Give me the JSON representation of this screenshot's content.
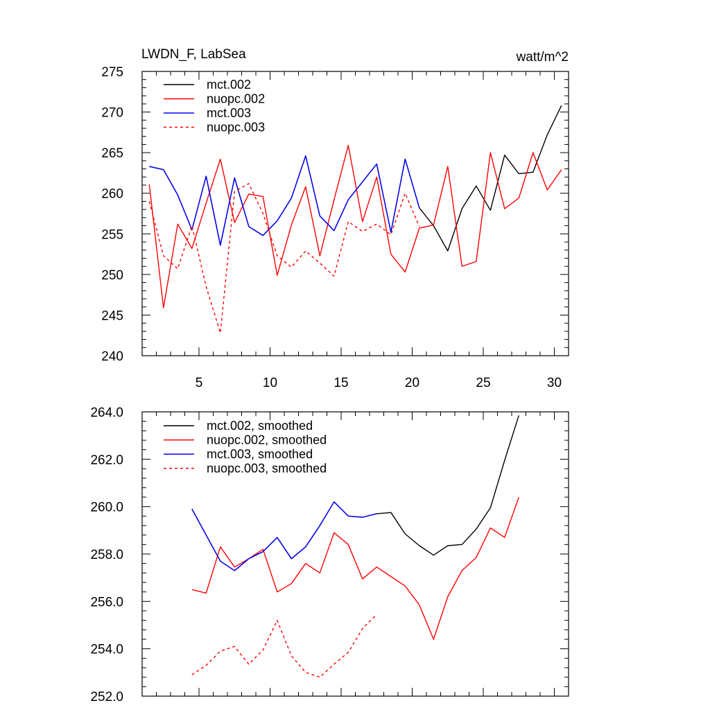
{
  "colors": {
    "black": "#000000",
    "red": "#ff0000",
    "blue": "#0000ff"
  },
  "chart_data": [
    {
      "type": "line",
      "title_left": "LWDN_F, LabSea",
      "title_right": "watt/m^2",
      "xlim": [
        1,
        31
      ],
      "ylim": [
        240,
        275
      ],
      "xticks": [
        5,
        10,
        15,
        20,
        25,
        30
      ],
      "xtick_labels": [
        "5",
        "10",
        "15",
        "20",
        "25",
        "30"
      ],
      "yticks": [
        240,
        245,
        250,
        255,
        260,
        265,
        270,
        275
      ],
      "ytick_labels": [
        "240",
        "245",
        "250",
        "255",
        "260",
        "265",
        "270",
        "275"
      ],
      "series": [
        {
          "name": "mct.002",
          "color": "#000000",
          "dash": false,
          "x": [
            1.5,
            2.5,
            3.5,
            4.5,
            5.5,
            6.5,
            7.5,
            8.5,
            9.5,
            10.5,
            11.5,
            12.5,
            13.5,
            14.5,
            15.5,
            16.5,
            17.5,
            18.5,
            19.5,
            20.5,
            21.5,
            22.5,
            23.5,
            24.5,
            25.5,
            26.5,
            27.5,
            28.5,
            29.5,
            30.5
          ],
          "values": [
            263.3,
            262.9,
            259.8,
            255.5,
            262.1,
            253.6,
            261.9,
            255.9,
            254.8,
            256.6,
            259.4,
            264.6,
            257.2,
            255.4,
            259.2,
            261.4,
            263.6,
            255.2,
            264.2,
            258.2,
            256.0,
            252.9,
            258.1,
            260.9,
            257.9,
            264.7,
            262.4,
            262.6,
            267.2,
            270.8
          ]
        },
        {
          "name": "nuopc.002",
          "color": "#ff0000",
          "dash": false,
          "x": [
            1.5,
            2.5,
            3.5,
            4.5,
            5.5,
            6.5,
            7.5,
            8.5,
            9.5,
            10.5,
            11.5,
            12.5,
            13.5,
            14.5,
            15.5,
            16.5,
            17.5,
            18.5,
            19.5,
            20.5,
            21.5,
            22.5,
            23.5,
            24.5,
            25.5,
            26.5,
            27.5,
            28.5,
            29.5,
            30.5
          ],
          "values": [
            261.1,
            245.9,
            256.2,
            253.2,
            258.8,
            264.2,
            256.4,
            259.9,
            259.6,
            249.9,
            256.1,
            260.8,
            252.3,
            259.2,
            265.9,
            256.5,
            262.0,
            252.5,
            250.3,
            255.7,
            256.1,
            263.3,
            251.0,
            251.6,
            265.0,
            258.1,
            259.4,
            265.0,
            260.4,
            262.9
          ]
        },
        {
          "name": "mct.003",
          "color": "#0000ff",
          "dash": false,
          "x": [
            1.5,
            2.5,
            3.5,
            4.5,
            5.5,
            6.5,
            7.5,
            8.5,
            9.5,
            10.5,
            11.5,
            12.5,
            13.5,
            14.5,
            15.5,
            16.5,
            17.5,
            18.5,
            19.5,
            20.5
          ],
          "values": [
            263.3,
            262.9,
            259.8,
            255.5,
            262.1,
            253.6,
            261.9,
            255.9,
            254.8,
            256.6,
            259.4,
            264.6,
            257.2,
            255.4,
            259.2,
            261.4,
            263.6,
            255.2,
            264.2,
            258.2
          ]
        },
        {
          "name": "nuopc.003",
          "color": "#ff0000",
          "dash": true,
          "x": [
            1.5,
            2.5,
            3.5,
            4.5,
            5.5,
            6.5,
            7.5,
            8.5,
            9.5,
            10.5,
            11.5,
            12.5,
            13.5,
            14.5,
            15.5,
            16.5,
            17.5,
            18.5,
            19.5,
            20.5
          ],
          "values": [
            259.0,
            252.3,
            250.7,
            256.0,
            248.5,
            242.8,
            260.2,
            261.2,
            257.5,
            252.3,
            250.9,
            252.9,
            251.4,
            249.8,
            256.5,
            255.3,
            256.2,
            254.9,
            260.0,
            255.9
          ]
        }
      ]
    },
    {
      "type": "line",
      "xlim": [
        1,
        31
      ],
      "ylim": [
        252,
        264
      ],
      "xticks": [
        5,
        10,
        15,
        20,
        25,
        30
      ],
      "yticks": [
        252,
        254,
        256,
        258,
        260,
        262,
        264
      ],
      "ytick_labels": [
        "252.0",
        "254.0",
        "256.0",
        "258.0",
        "260.0",
        "262.0",
        "264.0"
      ],
      "series": [
        {
          "name": "mct.002, smoothed",
          "color": "#000000",
          "dash": false,
          "x": [
            4.5,
            5.5,
            6.5,
            7.5,
            8.5,
            9.5,
            10.5,
            11.5,
            12.5,
            13.5,
            14.5,
            15.5,
            16.5,
            17.5,
            18.5,
            19.5,
            20.5,
            21.5,
            22.5,
            23.5,
            24.5,
            25.5,
            26.5,
            27.5
          ],
          "values": [
            259.9,
            258.8,
            257.7,
            257.3,
            257.8,
            258.1,
            258.7,
            257.8,
            258.3,
            259.2,
            260.2,
            259.6,
            259.55,
            259.7,
            259.75,
            258.85,
            258.35,
            257.95,
            258.35,
            258.4,
            259.05,
            259.95,
            261.95,
            263.85
          ]
        },
        {
          "name": "nuopc.002, smoothed",
          "color": "#ff0000",
          "dash": false,
          "x": [
            4.5,
            5.5,
            6.5,
            7.5,
            8.5,
            9.5,
            10.5,
            11.5,
            12.5,
            13.5,
            14.5,
            15.5,
            16.5,
            17.5,
            18.5,
            19.5,
            20.5,
            21.5,
            22.5,
            23.5,
            24.5,
            25.5,
            26.5,
            27.5
          ],
          "values": [
            256.5,
            256.35,
            258.3,
            257.45,
            257.8,
            258.2,
            256.4,
            256.75,
            257.6,
            257.2,
            258.9,
            258.4,
            256.95,
            257.45,
            257.05,
            256.65,
            255.85,
            254.4,
            256.2,
            257.3,
            257.85,
            259.1,
            258.7,
            260.4
          ]
        },
        {
          "name": "mct.003, smoothed",
          "color": "#0000ff",
          "dash": false,
          "x": [
            4.5,
            5.5,
            6.5,
            7.5,
            8.5,
            9.5,
            10.5,
            11.5,
            12.5,
            13.5,
            14.5,
            15.5,
            16.5,
            17.5
          ],
          "values": [
            259.9,
            258.8,
            257.7,
            257.3,
            257.8,
            258.1,
            258.7,
            257.8,
            258.3,
            259.2,
            260.2,
            259.6,
            259.55,
            259.7
          ]
        },
        {
          "name": "nuopc.003, smoothed",
          "color": "#ff0000",
          "dash": true,
          "x": [
            4.5,
            5.5,
            6.5,
            7.5,
            8.5,
            9.5,
            10.5,
            11.5,
            12.5,
            13.5,
            14.5,
            15.5,
            16.5,
            17.5
          ],
          "values": [
            252.9,
            253.3,
            253.9,
            254.1,
            253.35,
            253.95,
            255.2,
            253.7,
            253.0,
            252.8,
            253.35,
            253.85,
            254.85,
            255.45
          ]
        }
      ]
    }
  ]
}
